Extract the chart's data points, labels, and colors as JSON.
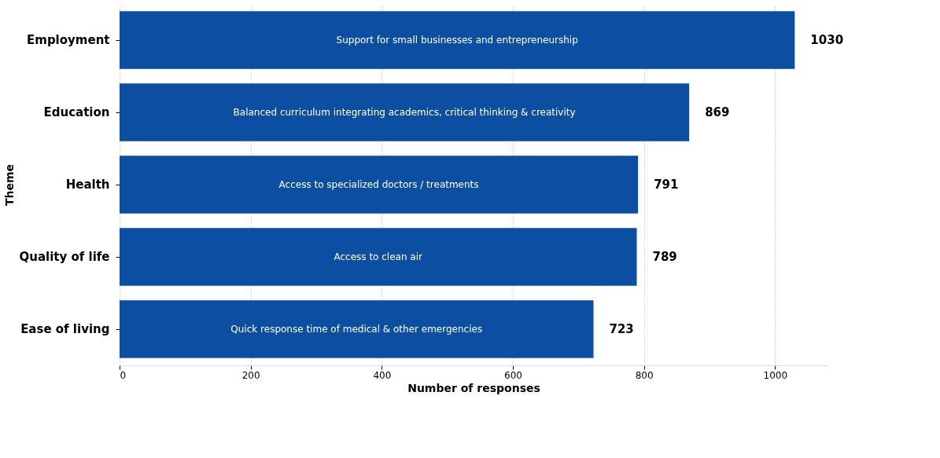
{
  "chart_data": {
    "type": "bar",
    "orientation": "horizontal",
    "xlabel": "Number of responses",
    "ylabel": "Theme",
    "categories": [
      "Employment",
      "Education",
      "Health",
      "Quality of life",
      "Ease of living"
    ],
    "values": [
      1030,
      869,
      791,
      789,
      723
    ],
    "color": "#0b4ea2",
    "data_labels": true,
    "xlim": [
      0,
      1080
    ],
    "xticks": [
      0,
      200,
      400,
      600,
      800,
      1000
    ],
    "grid": "x",
    "annotations": [
      {
        "text": "Support for small businesses and entrepreneurship",
        "x": 515,
        "y": "Employment"
      },
      {
        "text": "Balanced curriculum integrating academics, critical thinking & creativity",
        "x": 434.5,
        "y": "Education"
      },
      {
        "text": "Access to specialized doctors / treatments",
        "x": 395.5,
        "y": "Health"
      },
      {
        "text": "Access to clean air",
        "x": 394.5,
        "y": "Quality of life"
      },
      {
        "text": "Quick response time of medical & other emergencies",
        "x": 361.5,
        "y": "Ease of living"
      }
    ]
  }
}
